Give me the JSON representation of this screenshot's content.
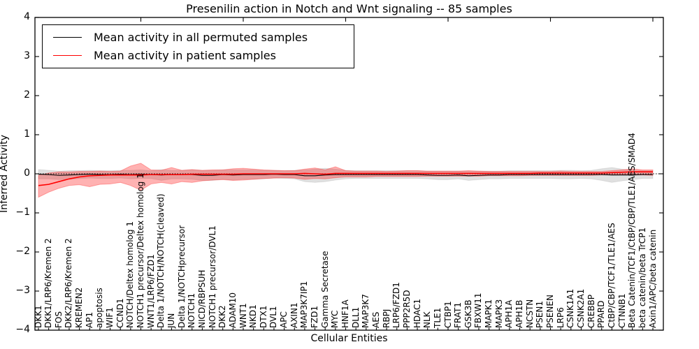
{
  "figure": {
    "title": "Presenilin action in Notch and Wnt signaling -- 85 samples",
    "xlabel": "Cellular Entities",
    "ylabel": "Inferred Activity"
  },
  "legend": {
    "items": [
      {
        "label": "Mean activity in all permuted samples",
        "color": "#000000"
      },
      {
        "label": "Mean activity in patient samples",
        "color": "#ff0000"
      }
    ]
  },
  "chart_data": {
    "type": "line",
    "title": "Presenilin action in Notch and Wnt signaling -- 85 samples",
    "xlabel": "Cellular Entities",
    "ylabel": "Inferred Activity",
    "ylim": [
      -4,
      4
    ],
    "grid": false,
    "legend_position": "upper left",
    "zero_reference_line": {
      "y": 0,
      "style": "dotted",
      "color": "#000000"
    },
    "yticks": [
      {
        "value": 4,
        "label": "4"
      },
      {
        "value": 3,
        "label": "3"
      },
      {
        "value": 2,
        "label": "2"
      },
      {
        "value": 1,
        "label": "1"
      },
      {
        "value": 0,
        "label": "0"
      },
      {
        "value": -1,
        "label": "−1"
      },
      {
        "value": -2,
        "label": "−2"
      },
      {
        "value": -3,
        "label": "−3"
      },
      {
        "value": -4,
        "label": "−4"
      }
    ],
    "categories": [
      "DKK1",
      "DKK1/LRP6/Kremen 2",
      "FOS",
      "DKK2/LRP6/Kremen 2",
      "KREMEN2",
      "AP1",
      "apoptosis",
      "WIF1",
      "CCND1",
      "NOTCH/Deltex homolog 1",
      "NOTCH1 precursor/Deltex homolog 1",
      "WNT1/LRP6/FZD1",
      "Delta 1/NOTCH/NOTCH(cleaved)",
      "JUN",
      "Delta 1/NOTCHprecursor",
      "NOTCH1",
      "NICD/RBPSUH",
      "NOTCH1 precursor/DVL1",
      "DKK2",
      "ADAM10",
      "WNT1",
      "NKD1",
      "DTX1",
      "DVL1",
      "APC",
      "AXIN1",
      "MAP3K7IP1",
      "FZD1",
      "Gamma Secretase",
      "MYC",
      "HNF1A",
      "DLL1",
      "MAP3K7",
      "AES",
      "RBPJ",
      "LRP6/FZD1",
      "PPP2R5D",
      "HDAC1",
      "NLK",
      "TLE1",
      "CTBP1",
      "FRAT1",
      "GSK3B",
      "FBXW11",
      "MAPK1",
      "MAPK3",
      "APH1A",
      "APH1B",
      "NCSTN",
      "PSEN1",
      "PSENEN",
      "LRP6",
      "CSNK1A1",
      "CSNK2A1",
      "CREBBP",
      "PPARD",
      "CtBP/CBP/TCF1/TLE1/AES",
      "CTNNB1",
      "Beta Catenin/TCF1/CtBP/CBP/TLE1/AES/SMAD4",
      "beta catenin/beta TrCP1",
      "Axin1/APC/beta catenin"
    ],
    "series": [
      {
        "name": "Mean activity in all permuted samples",
        "color": "#000000",
        "values": [
          -0.01,
          -0.02,
          -0.04,
          -0.03,
          -0.02,
          -0.01,
          -0.02,
          -0.02,
          -0.01,
          -0.02,
          -0.01,
          -0.02,
          -0.03,
          -0.02,
          -0.02,
          -0.02,
          -0.04,
          -0.04,
          -0.02,
          -0.03,
          -0.02,
          -0.02,
          -0.02,
          -0.01,
          -0.02,
          -0.02,
          -0.05,
          -0.05,
          -0.03,
          -0.02,
          -0.02,
          -0.02,
          -0.02,
          -0.02,
          -0.02,
          -0.02,
          -0.02,
          -0.02,
          -0.03,
          -0.04,
          -0.04,
          -0.03,
          -0.05,
          -0.04,
          -0.03,
          -0.03,
          -0.02,
          -0.02,
          -0.02,
          -0.02,
          -0.02,
          -0.02,
          -0.02,
          -0.02,
          -0.02,
          -0.02,
          -0.03,
          -0.03,
          -0.03,
          -0.02,
          -0.02
        ],
        "band": {
          "color": "#000000",
          "opacity": 0.12,
          "halfwidth": [
            0.12,
            0.11,
            0.11,
            0.11,
            0.1,
            0.1,
            0.1,
            0.1,
            0.1,
            0.11,
            0.11,
            0.1,
            0.14,
            0.11,
            0.11,
            0.12,
            0.13,
            0.13,
            0.12,
            0.13,
            0.12,
            0.12,
            0.11,
            0.1,
            0.1,
            0.11,
            0.15,
            0.17,
            0.17,
            0.14,
            0.11,
            0.1,
            0.1,
            0.1,
            0.1,
            0.1,
            0.1,
            0.1,
            0.1,
            0.11,
            0.11,
            0.1,
            0.12,
            0.11,
            0.1,
            0.1,
            0.1,
            0.1,
            0.1,
            0.1,
            0.1,
            0.11,
            0.11,
            0.1,
            0.11,
            0.15,
            0.19,
            0.15,
            0.12,
            0.1,
            0.1
          ]
        }
      },
      {
        "name": "Mean activity in patient samples",
        "color": "#ff0000",
        "values": [
          -0.3,
          -0.27,
          -0.2,
          -0.13,
          -0.08,
          -0.05,
          -0.04,
          -0.03,
          -0.03,
          -0.03,
          -0.03,
          -0.02,
          -0.02,
          -0.02,
          -0.02,
          -0.01,
          -0.01,
          -0.01,
          -0.01,
          -0.01,
          0,
          0,
          0,
          0,
          0,
          0,
          0.01,
          0,
          -0.01,
          0.01,
          0.01,
          0.01,
          0.01,
          0.01,
          0.01,
          0.01,
          0.01,
          0.01,
          0.01,
          0.01,
          0.01,
          0.01,
          0.01,
          0.01,
          0.01,
          0.01,
          0.01,
          0.01,
          0.01,
          0.02,
          0.02,
          0.02,
          0.02,
          0.02,
          0.02,
          0.02,
          0.03,
          0.04,
          0.05,
          0.05,
          0.05
        ],
        "band": {
          "color": "#ff0000",
          "opacity": 0.3,
          "upper": [
            -0.04,
            0.02,
            0.05,
            0.05,
            0.06,
            0.06,
            0.07,
            0.06,
            0.07,
            0.2,
            0.27,
            0.1,
            0.09,
            0.16,
            0.09,
            0.11,
            0.09,
            0.1,
            0.1,
            0.13,
            0.14,
            0.12,
            0.1,
            0.09,
            0.08,
            0.08,
            0.12,
            0.15,
            0.1,
            0.18,
            0.08,
            0.07,
            0.07,
            0.07,
            0.06,
            0.07,
            0.08,
            0.08,
            0.07,
            0.07,
            0.07,
            0.07,
            0.08,
            0.07,
            0.06,
            0.06,
            0.06,
            0.06,
            0.06,
            0.06,
            0.06,
            0.07,
            0.06,
            0.06,
            0.06,
            0.06,
            0.08,
            0.1,
            0.13,
            0.1,
            0.1
          ],
          "lower": [
            -0.6,
            -0.47,
            -0.37,
            -0.3,
            -0.28,
            -0.33,
            -0.27,
            -0.26,
            -0.22,
            -0.3,
            -0.42,
            -0.26,
            -0.22,
            -0.26,
            -0.2,
            -0.22,
            -0.18,
            -0.16,
            -0.15,
            -0.17,
            -0.16,
            -0.14,
            -0.12,
            -0.11,
            -0.1,
            -0.11,
            -0.14,
            -0.12,
            -0.13,
            -0.1,
            -0.08,
            -0.08,
            -0.08,
            -0.07,
            -0.07,
            -0.07,
            -0.07,
            -0.07,
            -0.06,
            -0.06,
            -0.06,
            -0.06,
            -0.06,
            -0.06,
            -0.05,
            -0.05,
            -0.05,
            -0.05,
            -0.04,
            -0.04,
            -0.04,
            -0.04,
            -0.04,
            -0.04,
            -0.04,
            -0.03,
            -0.03,
            -0.02,
            -0.03,
            -0.03,
            -0.04
          ]
        }
      }
    ]
  }
}
